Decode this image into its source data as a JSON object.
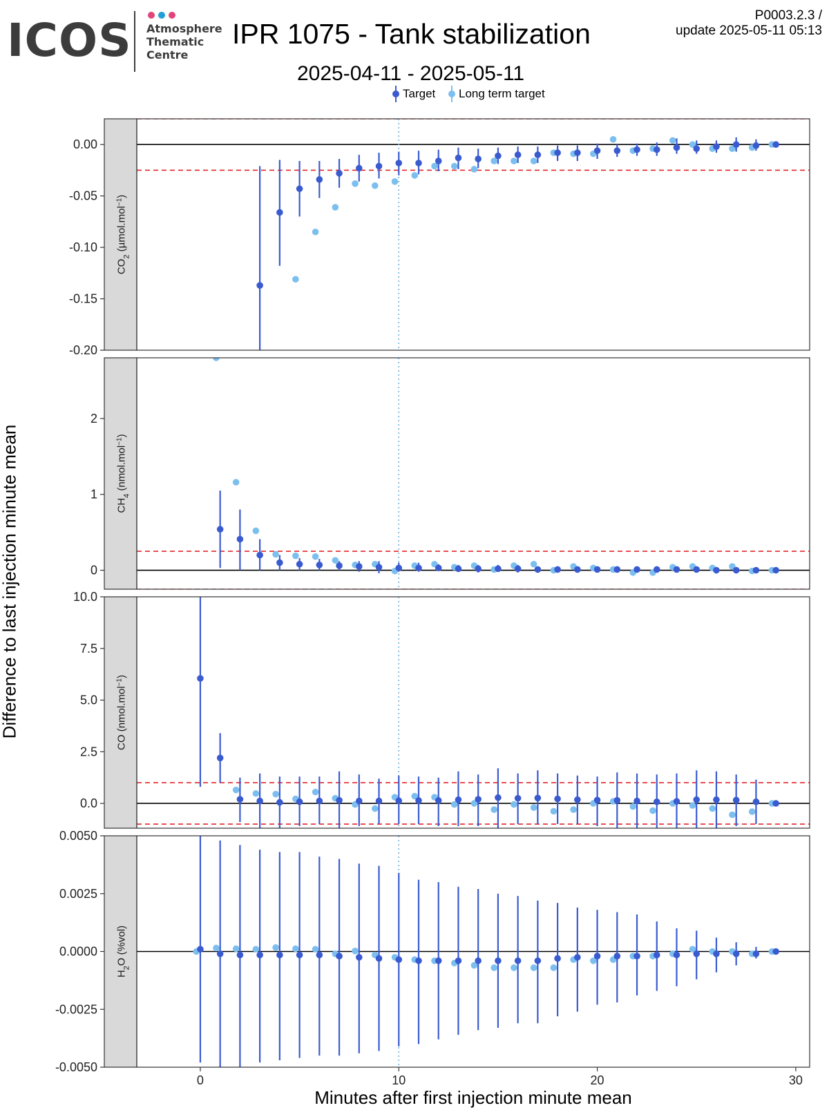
{
  "logo": {
    "word": "ICOS",
    "lines": [
      "Atmosphere",
      "Thematic",
      "Centre"
    ],
    "dot_colors": [
      "#e0457b",
      "#1f9ed8",
      "#e0457b"
    ]
  },
  "header": {
    "title": "IPR 1075 - Tank stabilization",
    "code": "P0003.2.3 /",
    "update": "update  2025-05-11 05:13",
    "date_range": "2025-04-11 - 2025-05-11"
  },
  "colors": {
    "target": "#3a5bd0",
    "long_term": "#7cbfef",
    "threshold": "#e3262b",
    "zero": "#000000",
    "vline": "#6fb2e0",
    "strip_fill": "#d9d9d9"
  },
  "chart_data": {
    "type": "scatter",
    "xlabel": "Minutes after first injection minute mean",
    "ylabel": "Difference to last injection minute mean",
    "xlim": [
      -3.2,
      30.7
    ],
    "x_ticks": [
      0,
      10,
      20,
      30
    ],
    "vline_x": 10,
    "legend": {
      "placement": "top",
      "entries": [
        "Target",
        "Long term target"
      ]
    },
    "grid": false,
    "panels": [
      {
        "name": "CO2",
        "strip_label": "CO2 (µmol.mol-1)",
        "strip_parts": [
          [
            "CO",
            ""
          ],
          [
            "2",
            "sub"
          ],
          [
            " (µmol.mol",
            ""
          ],
          [
            "−1",
            "sup"
          ],
          [
            ")",
            ""
          ]
        ],
        "ylim": [
          -0.2,
          0.025
        ],
        "y_ticks": [
          0.0,
          -0.05,
          -0.1,
          -0.15,
          -0.2
        ],
        "y_tick_labels": [
          "0.00",
          "-0.05",
          "-0.10",
          "-0.15",
          "-0.20"
        ],
        "thresholds": [
          0.025,
          -0.025
        ],
        "target": {
          "x": [
            3,
            4,
            5,
            6,
            7,
            8,
            9,
            10,
            11,
            12,
            13,
            14,
            15,
            16,
            17,
            18,
            19,
            20,
            21,
            22,
            23,
            24,
            25,
            26,
            27,
            28,
            29
          ],
          "y": [
            -0.137,
            -0.066,
            -0.043,
            -0.034,
            -0.028,
            -0.023,
            -0.021,
            -0.018,
            -0.018,
            -0.016,
            -0.013,
            -0.014,
            -0.011,
            -0.01,
            -0.01,
            -0.008,
            -0.008,
            -0.006,
            -0.006,
            -0.005,
            -0.005,
            -0.003,
            -0.004,
            -0.002,
            0.0,
            -0.001,
            0.0
          ],
          "ylow": [
            -0.2,
            -0.118,
            -0.07,
            -0.052,
            -0.042,
            -0.036,
            -0.033,
            -0.03,
            -0.029,
            -0.026,
            -0.024,
            -0.023,
            -0.019,
            -0.018,
            -0.018,
            -0.016,
            -0.016,
            -0.014,
            -0.012,
            -0.011,
            -0.011,
            -0.009,
            -0.009,
            -0.008,
            -0.007,
            -0.006,
            0.0
          ],
          "yhigh": [
            -0.021,
            -0.015,
            -0.016,
            -0.016,
            -0.014,
            -0.01,
            -0.008,
            -0.007,
            -0.006,
            -0.005,
            -0.003,
            -0.004,
            -0.003,
            -0.002,
            -0.002,
            -0.001,
            -0.001,
            0.001,
            0.0,
            0.001,
            0.002,
            0.006,
            0.004,
            0.004,
            0.007,
            0.005,
            0.0
          ]
        },
        "long_term": {
          "x": [
            4.8,
            5.8,
            6.8,
            7.8,
            8.8,
            9.8,
            10.8,
            11.8,
            12.8,
            13.8,
            14.8,
            15.8,
            16.8,
            17.8,
            18.8,
            19.8,
            20.8,
            21.8,
            22.8,
            23.8,
            24.8,
            25.8,
            26.8,
            27.8,
            28.8
          ],
          "y": [
            -0.131,
            -0.085,
            -0.061,
            -0.038,
            -0.04,
            -0.036,
            -0.03,
            -0.021,
            -0.021,
            -0.024,
            -0.016,
            -0.016,
            -0.016,
            -0.008,
            -0.009,
            -0.009,
            0.005,
            -0.006,
            -0.004,
            0.004,
            0.0,
            -0.004,
            -0.004,
            -0.003,
            0.0
          ]
        }
      },
      {
        "name": "CH4",
        "strip_label": "CH4 (nmol.mol-1)",
        "strip_parts": [
          [
            "CH",
            ""
          ],
          [
            "4",
            "sub"
          ],
          [
            " (nmol.mol",
            ""
          ],
          [
            "−1",
            "sup"
          ],
          [
            ")",
            ""
          ]
        ],
        "ylim": [
          -0.25,
          2.8
        ],
        "y_ticks": [
          0,
          1,
          2
        ],
        "y_tick_labels": [
          "0",
          "1",
          "2"
        ],
        "thresholds": [
          0.25,
          -0.25
        ],
        "target": {
          "x": [
            1,
            2,
            3,
            4,
            5,
            6,
            7,
            8,
            9,
            10,
            11,
            12,
            13,
            14,
            15,
            16,
            17,
            18,
            19,
            20,
            21,
            22,
            23,
            24,
            25,
            26,
            27,
            28,
            29
          ],
          "y": [
            0.54,
            0.41,
            0.2,
            0.1,
            0.08,
            0.07,
            0.06,
            0.05,
            0.04,
            0.03,
            0.03,
            0.03,
            0.02,
            0.02,
            0.02,
            0.02,
            0.01,
            0.01,
            0.01,
            0.01,
            0.01,
            0.01,
            0.01,
            0.01,
            0.01,
            0.0,
            0.0,
            0.0,
            0.0
          ],
          "ylow": [
            0.03,
            0.0,
            0.0,
            0.0,
            0.0,
            0.0,
            0.0,
            -0.02,
            -0.04,
            -0.02,
            -0.02,
            -0.01,
            -0.02,
            -0.03,
            -0.02,
            -0.03,
            -0.03,
            -0.03,
            -0.02,
            -0.02,
            -0.02,
            -0.02,
            -0.02,
            -0.02,
            -0.02,
            -0.02,
            -0.01,
            -0.01,
            0.0
          ],
          "yhigh": [
            1.05,
            0.8,
            0.41,
            0.2,
            0.16,
            0.15,
            0.12,
            0.12,
            0.12,
            0.1,
            0.1,
            0.08,
            0.07,
            0.07,
            0.07,
            0.07,
            0.05,
            0.05,
            0.05,
            0.04,
            0.04,
            0.04,
            0.04,
            0.04,
            0.03,
            0.03,
            0.02,
            0.01,
            0.0
          ]
        },
        "long_term": {
          "x": [
            0.8,
            1.8,
            2.8,
            3.8,
            4.8,
            5.8,
            6.8,
            7.8,
            8.8,
            9.8,
            10.8,
            11.8,
            12.8,
            13.8,
            14.8,
            15.8,
            16.8,
            17.8,
            18.8,
            19.8,
            20.8,
            21.8,
            22.8,
            23.8,
            24.8,
            25.8,
            26.8,
            27.8,
            28.8
          ],
          "y": [
            2.8,
            1.16,
            0.52,
            0.21,
            0.19,
            0.18,
            0.13,
            0.07,
            0.08,
            -0.01,
            0.06,
            0.08,
            0.04,
            0.06,
            0.01,
            0.06,
            0.08,
            0.0,
            0.05,
            0.03,
            0.01,
            -0.03,
            -0.03,
            0.04,
            0.05,
            0.03,
            0.05,
            -0.01,
            0.0
          ]
        }
      },
      {
        "name": "CO",
        "strip_label": "CO (nmol.mol-1)",
        "strip_parts": [
          [
            "CO (nmol.mol",
            ""
          ],
          [
            "−1",
            "sup"
          ],
          [
            ")",
            ""
          ]
        ],
        "ylim": [
          -1.2,
          10.0
        ],
        "y_ticks": [
          0.0,
          2.5,
          5.0,
          7.5,
          10.0
        ],
        "y_tick_labels": [
          "0.0",
          "2.5",
          "5.0",
          "7.5",
          "10.0"
        ],
        "thresholds": [
          1,
          -1
        ],
        "target": {
          "x": [
            0,
            1,
            2,
            3,
            4,
            5,
            6,
            7,
            8,
            9,
            10,
            11,
            12,
            13,
            14,
            15,
            16,
            17,
            18,
            19,
            20,
            21,
            22,
            23,
            24,
            25,
            26,
            27,
            28,
            29
          ],
          "y": [
            6.05,
            2.2,
            0.2,
            0.12,
            0.05,
            0.08,
            0.12,
            0.15,
            0.12,
            0.12,
            0.13,
            0.14,
            0.14,
            0.18,
            0.2,
            0.28,
            0.25,
            0.26,
            0.22,
            0.18,
            0.16,
            0.15,
            0.12,
            0.08,
            0.1,
            0.18,
            0.18,
            0.16,
            0.08,
            0.0
          ],
          "ylow": [
            0.8,
            1.0,
            -0.9,
            -1.2,
            -1.2,
            -1.1,
            -1.0,
            -1.2,
            -1.1,
            -1.0,
            -1.0,
            -1.0,
            -1.1,
            -1.1,
            -1.1,
            -1.2,
            -1.0,
            -1.0,
            -1.0,
            -1.0,
            -1.1,
            -1.2,
            -1.2,
            -1.2,
            -1.2,
            -1.2,
            -1.2,
            -1.1,
            -1.0,
            0.0
          ],
          "yhigh": [
            10.0,
            3.4,
            1.25,
            1.45,
            1.3,
            1.3,
            1.3,
            1.55,
            1.4,
            1.2,
            1.35,
            1.3,
            1.25,
            1.55,
            1.4,
            1.7,
            1.45,
            1.6,
            1.45,
            1.35,
            1.3,
            1.5,
            1.45,
            1.4,
            1.45,
            1.6,
            1.55,
            1.4,
            1.15,
            0.0
          ]
        },
        "long_term": {
          "x": [
            1.8,
            2.8,
            3.8,
            4.8,
            5.8,
            6.8,
            7.8,
            8.8,
            9.8,
            10.8,
            11.8,
            12.8,
            13.8,
            14.8,
            15.8,
            16.8,
            17.8,
            18.8,
            19.8,
            20.8,
            21.8,
            22.8,
            23.8,
            24.8,
            25.8,
            26.8,
            27.8,
            28.8
          ],
          "y": [
            0.65,
            0.48,
            0.45,
            0.22,
            0.55,
            0.25,
            -0.05,
            -0.25,
            0.3,
            0.35,
            0.3,
            -0.05,
            0.0,
            -0.3,
            -0.05,
            -0.2,
            -0.38,
            -0.3,
            0.0,
            0.1,
            -0.15,
            -0.35,
            0.0,
            -0.1,
            -0.25,
            -0.55,
            -0.4,
            0.0
          ]
        }
      },
      {
        "name": "H2O",
        "strip_label": "H2O (%vol)",
        "strip_parts": [
          [
            "H",
            ""
          ],
          [
            "2",
            "sub"
          ],
          [
            "O (%vol)",
            ""
          ]
        ],
        "ylim": [
          -0.005,
          0.005
        ],
        "y_ticks": [
          0.005,
          0.0025,
          0.0,
          -0.0025,
          -0.005
        ],
        "y_tick_labels": [
          "0.0050",
          "0.0025",
          "0.0000",
          "-0.0025",
          "-0.0050"
        ],
        "thresholds": [],
        "target": {
          "x": [
            0,
            1,
            2,
            3,
            4,
            5,
            6,
            7,
            8,
            9,
            10,
            11,
            12,
            13,
            14,
            15,
            16,
            17,
            18,
            19,
            20,
            21,
            22,
            23,
            24,
            25,
            26,
            27,
            28,
            29
          ],
          "y": [
            0.0001,
            -0.0001,
            -0.00015,
            -0.00015,
            -0.00015,
            -0.00015,
            -0.00015,
            -0.0002,
            -0.00025,
            -0.0003,
            -0.00035,
            -0.0004,
            -0.0004,
            -0.0004,
            -0.0004,
            -0.0004,
            -0.0004,
            -0.0004,
            -0.0003,
            -0.00025,
            -0.0002,
            -0.0002,
            -0.0002,
            -0.00015,
            -0.00015,
            -0.0001,
            -0.0001,
            -0.0001,
            -0.0001,
            0.0
          ],
          "ylow": [
            -0.0048,
            -0.005,
            -0.005,
            -0.0048,
            -0.0047,
            -0.0046,
            -0.0045,
            -0.0045,
            -0.0044,
            -0.0043,
            -0.0041,
            -0.004,
            -0.0038,
            -0.0036,
            -0.0034,
            -0.0033,
            -0.0031,
            -0.0031,
            -0.0028,
            -0.0026,
            -0.0023,
            -0.0022,
            -0.0019,
            -0.0017,
            -0.0015,
            -0.0012,
            -0.0009,
            -0.0006,
            -0.0003,
            0.0
          ],
          "yhigh": [
            0.005,
            0.0048,
            0.0046,
            0.0044,
            0.0043,
            0.0043,
            0.0041,
            0.004,
            0.0038,
            0.0037,
            0.0034,
            0.0031,
            0.003,
            0.0028,
            0.0027,
            0.0025,
            0.0024,
            0.0022,
            0.0021,
            0.0019,
            0.0018,
            0.0017,
            0.0016,
            0.0013,
            0.001,
            0.0009,
            0.0006,
            0.0004,
            0.0002,
            0.0
          ]
        },
        "long_term": {
          "x": [
            -0.2,
            0.8,
            1.8,
            2.8,
            3.8,
            4.8,
            5.8,
            6.8,
            7.8,
            8.8,
            9.8,
            10.8,
            11.8,
            12.8,
            13.8,
            14.8,
            15.8,
            16.8,
            17.8,
            18.8,
            19.8,
            20.8,
            21.8,
            22.8,
            23.8,
            24.8,
            25.8,
            26.8,
            27.8,
            28.8
          ],
          "y": [
            0.0,
            0.00015,
            0.00012,
            0.0001,
            0.00017,
            0.00012,
            0.0001,
            -0.0001,
            2e-05,
            -0.00015,
            -0.00025,
            -0.00035,
            -0.0004,
            -0.0005,
            -0.0006,
            -0.0007,
            -0.0007,
            -0.0007,
            -0.0007,
            -0.00035,
            -0.0004,
            -0.00035,
            -0.0002,
            -0.0002,
            -0.0001,
            0.0001,
            0.0,
            0.0,
            -0.0001,
            0.0
          ]
        }
      }
    ]
  }
}
